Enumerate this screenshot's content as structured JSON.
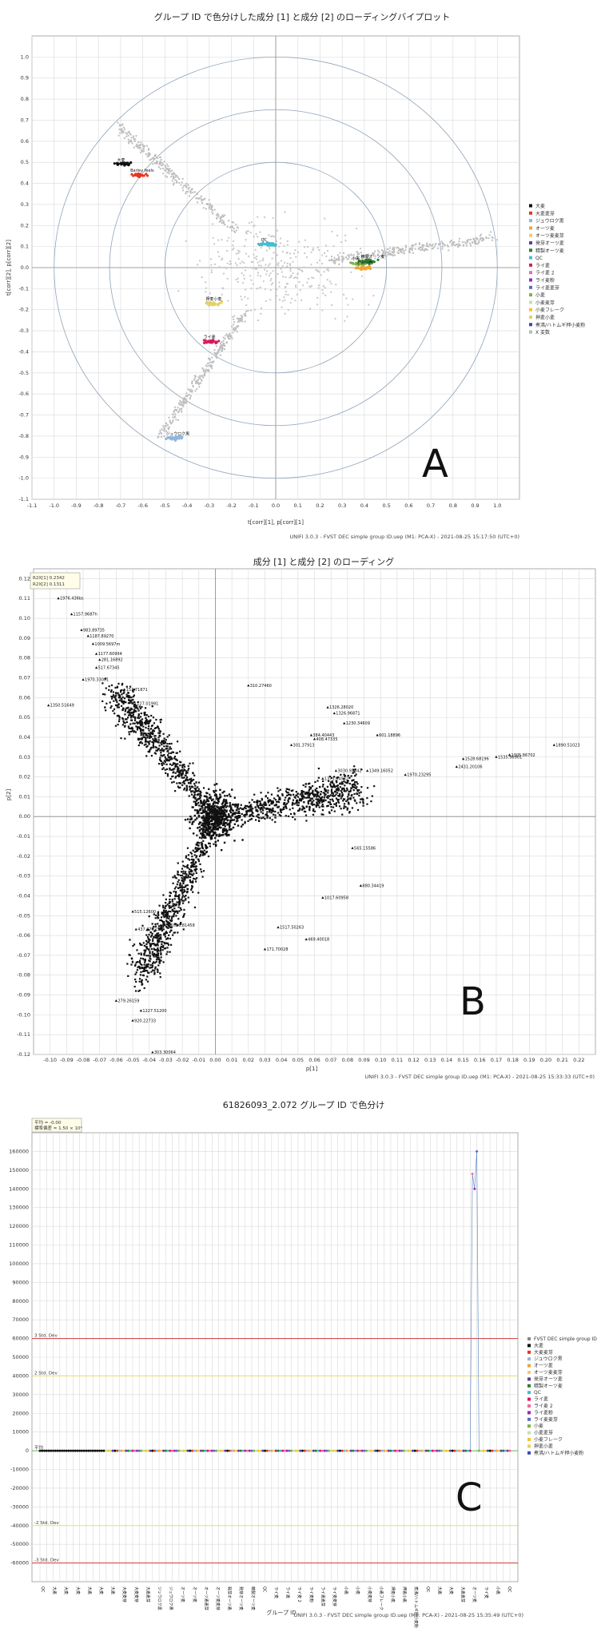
{
  "chart_data": [
    {
      "id": "A",
      "type": "scatter",
      "title": "グループ ID で色分けした成分 [1] と成分 [2] のローディングバイプロット",
      "xlabel": "t[corr][1], p[corr][1]",
      "ylabel": "t[corr][2], p[corr][2]",
      "xlim": [
        -1.1,
        1.1
      ],
      "ylim": [
        -1.1,
        1.1
      ],
      "xticks": [
        -1.1,
        -1.0,
        -0.9,
        -0.8,
        -0.7,
        -0.6,
        -0.5,
        -0.4,
        -0.3,
        -0.2,
        -0.1,
        0.0,
        0.1,
        0.2,
        0.3,
        0.4,
        0.5,
        0.6,
        0.7,
        0.8,
        0.9,
        1.0
      ],
      "yticks": [
        -1.1,
        -1.0,
        -0.9,
        -0.8,
        -0.7,
        -0.6,
        -0.5,
        -0.4,
        -0.3,
        -0.2,
        -0.1,
        0.0,
        0.1,
        0.2,
        0.3,
        0.4,
        0.5,
        0.6,
        0.7,
        0.8,
        0.9,
        1.0
      ],
      "circles": [
        0.5,
        0.75,
        1.0
      ],
      "grid": true,
      "legend_position": "right",
      "footer": "UNIFI 3.0.3 - FVST DEC simple group ID.uep (M1: PCA-X) - 2021-08-25 15:17:50 (UTC+0)",
      "panel_letter": "A",
      "legend": [
        {
          "name": "大麦",
          "color": "#111111"
        },
        {
          "name": "大麦麦芽",
          "color": "#e8351f"
        },
        {
          "name": "ジュウロク黒",
          "color": "#8fb6dc"
        },
        {
          "name": "オーツ麦",
          "color": "#f0a436"
        },
        {
          "name": "オーツ麦麦芽",
          "color": "#f7c873"
        },
        {
          "name": "発芽オーツ麦",
          "color": "#5a3f9c"
        },
        {
          "name": "精製オーツ麦",
          "color": "#2e7d32"
        },
        {
          "name": "QC",
          "color": "#42bcd4"
        },
        {
          "name": "ライ麦",
          "color": "#d81b60"
        },
        {
          "name": "ライ麦 2",
          "color": "#ef6c9e"
        },
        {
          "name": "ライ麦粉",
          "color": "#9c27b0"
        },
        {
          "name": "ライ麦麦芽",
          "color": "#5c6bc0"
        },
        {
          "name": "小麦",
          "color": "#7cb342"
        },
        {
          "name": "小麦麦芽",
          "color": "#c5e1a5"
        },
        {
          "name": "小麦フレーク",
          "color": "#fbc02d"
        },
        {
          "name": "押麦小麦",
          "color": "#e6d060"
        },
        {
          "name": "煮沸/ハトムギ押小麦粉",
          "color": "#3949ab"
        },
        {
          "name": "X 変数",
          "color": "#b9b9b9"
        }
      ],
      "clusters": [
        {
          "name": "大麦",
          "x": -0.68,
          "y": 0.49,
          "label": "大麦"
        },
        {
          "name": "大麦麦芽",
          "x": -0.62,
          "y": 0.44,
          "label": "Barley feels"
        },
        {
          "name": "QC",
          "x": -0.03,
          "y": 0.11,
          "label": "QC"
        },
        {
          "name": "小麦",
          "x": 0.38,
          "y": 0.02,
          "label": "小麦"
        },
        {
          "name": "精製オーツ麦",
          "x": 0.42,
          "y": 0.03,
          "label": "精製オーツ麦"
        },
        {
          "name": "オーツ麦",
          "x": 0.4,
          "y": 0.0,
          "label": "オーツ麦"
        },
        {
          "name": "ライ麦",
          "x": -0.29,
          "y": -0.35,
          "label": "ライ麦"
        },
        {
          "name": "押麦小麦",
          "x": -0.28,
          "y": -0.17,
          "label": "押麦小麦"
        },
        {
          "name": "ジュウロク黒",
          "x": -0.46,
          "y": -0.81,
          "label": "ジュウロク黒"
        }
      ]
    },
    {
      "id": "B",
      "type": "scatter",
      "title": "成分 [1] と成分 [2] のローディング",
      "xlabel": "p[1]",
      "ylabel": "p[2]",
      "xlim": [
        -0.11,
        0.23
      ],
      "ylim": [
        -0.12,
        0.125
      ],
      "xticks": [
        -0.1,
        -0.09,
        -0.08,
        -0.07,
        -0.06,
        -0.05,
        -0.04,
        -0.03,
        -0.02,
        -0.01,
        0.0,
        0.01,
        0.02,
        0.03,
        0.04,
        0.05,
        0.06,
        0.07,
        0.08,
        0.09,
        0.1,
        0.11,
        0.12,
        0.13,
        0.14,
        0.15,
        0.16,
        0.17,
        0.18,
        0.19,
        0.2,
        0.21,
        0.22
      ],
      "yticks": [
        -0.12,
        -0.11,
        -0.1,
        -0.09,
        -0.08,
        -0.07,
        -0.06,
        -0.05,
        -0.04,
        -0.03,
        -0.02,
        -0.01,
        0.0,
        0.01,
        0.02,
        0.03,
        0.04,
        0.05,
        0.06,
        0.07,
        0.08,
        0.09,
        0.1,
        0.11,
        0.12
      ],
      "grid": true,
      "footer": "UNIFI 3.0.3 - FVST DEC simple group ID.uep (M1: PCA-X) - 2021-08-25 15:33:33 (UTC+0)",
      "panel_letter": "B",
      "stats_box": [
        "R2X[1]   0.2342",
        "R2X[2]   0.1311"
      ],
      "labeled_points": [
        {
          "x": -0.095,
          "y": 0.11,
          "label": "1976.436bs"
        },
        {
          "x": -0.087,
          "y": 0.102,
          "label": "1157.9687h"
        },
        {
          "x": -0.081,
          "y": 0.094,
          "label": "983.89735"
        },
        {
          "x": -0.077,
          "y": 0.091,
          "label": "1187.89270"
        },
        {
          "x": -0.074,
          "y": 0.087,
          "label": "1009.5697m"
        },
        {
          "x": -0.072,
          "y": 0.082,
          "label": "1177.60994"
        },
        {
          "x": -0.07,
          "y": 0.079,
          "label": "281.16892"
        },
        {
          "x": -0.072,
          "y": 0.075,
          "label": "517.67345"
        },
        {
          "x": -0.08,
          "y": 0.069,
          "label": "1970.33001"
        },
        {
          "x": -0.101,
          "y": 0.056,
          "label": "1350.51649"
        },
        {
          "x": -0.055,
          "y": 0.064,
          "label": "153.71871"
        },
        {
          "x": -0.05,
          "y": 0.057,
          "label": "1127.01991"
        },
        {
          "x": 0.02,
          "y": 0.066,
          "label": "310.27460"
        },
        {
          "x": 0.068,
          "y": 0.055,
          "label": "1326.28020"
        },
        {
          "x": 0.072,
          "y": 0.052,
          "label": "1326.96871"
        },
        {
          "x": 0.078,
          "y": 0.047,
          "label": "1230.34609"
        },
        {
          "x": 0.058,
          "y": 0.041,
          "label": "384.40443"
        },
        {
          "x": 0.06,
          "y": 0.039,
          "label": "408.47335"
        },
        {
          "x": 0.098,
          "y": 0.041,
          "label": "601.18896"
        },
        {
          "x": 0.046,
          "y": 0.036,
          "label": "301.37913"
        },
        {
          "x": 0.073,
          "y": 0.023,
          "label": "3030.97842"
        },
        {
          "x": 0.065,
          "y": 0.019,
          "label": "1373.64532"
        },
        {
          "x": 0.092,
          "y": 0.023,
          "label": "1349.16052"
        },
        {
          "x": 0.115,
          "y": 0.021,
          "label": "1970.23295"
        },
        {
          "x": 0.15,
          "y": 0.029,
          "label": "1528.68196"
        },
        {
          "x": 0.146,
          "y": 0.025,
          "label": "2431.20106"
        },
        {
          "x": 0.178,
          "y": 0.031,
          "label": "1305.86702"
        },
        {
          "x": 0.205,
          "y": 0.036,
          "label": "1890.51023"
        },
        {
          "x": 0.17,
          "y": 0.03,
          "label": "1535.96901"
        },
        {
          "x": 0.083,
          "y": -0.016,
          "label": "565.15586"
        },
        {
          "x": 0.088,
          "y": -0.035,
          "label": "880.34419"
        },
        {
          "x": 0.065,
          "y": -0.041,
          "label": "1017.60958"
        },
        {
          "x": 0.055,
          "y": -0.062,
          "label": "469.40018"
        },
        {
          "x": 0.038,
          "y": -0.056,
          "label": "1517.50263"
        },
        {
          "x": 0.03,
          "y": -0.067,
          "label": "171.70028"
        },
        {
          "x": -0.028,
          "y": -0.055,
          "label": "1086.81458"
        },
        {
          "x": -0.05,
          "y": -0.048,
          "label": "515.12600"
        },
        {
          "x": -0.048,
          "y": -0.057,
          "label": "437.67023"
        },
        {
          "x": -0.06,
          "y": -0.093,
          "label": "279.26159"
        },
        {
          "x": -0.045,
          "y": -0.098,
          "label": "1227.51200"
        },
        {
          "x": -0.05,
          "y": -0.103,
          "label": "920.22733"
        },
        {
          "x": -0.038,
          "y": -0.119,
          "label": "303.30064"
        }
      ]
    },
    {
      "id": "C",
      "type": "line",
      "title": "61826093_2.072 グループ ID で色分け",
      "xlabel": "グループ ID",
      "ylabel": "",
      "ylim": [
        -70000,
        170000
      ],
      "yticks": [
        -60000,
        -50000,
        -40000,
        -30000,
        -20000,
        -10000,
        0,
        10000,
        20000,
        30000,
        40000,
        50000,
        60000,
        70000,
        80000,
        90000,
        100000,
        110000,
        120000,
        130000,
        140000,
        150000,
        160000
      ],
      "grid": true,
      "footer": "UNIFI 3.0.3 - FVST DEC simple group ID.uep (M1: PCA-X) - 2021-08-25 15:35:49 (UTC+0)",
      "panel_letter": "C",
      "stats_box": [
        "平均 = -0.00",
        "標準偏差 = 1.50 × 10⁴"
      ],
      "reference_lines": [
        {
          "label": "3 Std. Dev",
          "value": 60000,
          "color": "#d23a3a"
        },
        {
          "label": "2 Std. Dev",
          "value": 40000,
          "color": "#e6df6a"
        },
        {
          "label": "平均",
          "value": 0,
          "color": "#5cb85c"
        },
        {
          "label": "-2 Std. Dev",
          "value": -40000,
          "color": "#e6df6a"
        },
        {
          "label": "-3 Std. Dev",
          "value": -60000,
          "color": "#d23a3a"
        }
      ],
      "n_samples": 214,
      "peak": {
        "index_start": 196,
        "index_end": 199,
        "values": [
          0,
          148000,
          140000,
          160000,
          0
        ]
      },
      "legend": [
        {
          "name": "FVST DEC simple group ID",
          "color": "#888888"
        },
        {
          "name": "大麦",
          "color": "#111111"
        },
        {
          "name": "大麦麦芽",
          "color": "#e8351f"
        },
        {
          "name": "ジュウロク黒",
          "color": "#8fb6dc"
        },
        {
          "name": "オーツ麦",
          "color": "#f0a436"
        },
        {
          "name": "オーツ麦麦芽",
          "color": "#f7c873"
        },
        {
          "name": "発芽オーツ麦",
          "color": "#5a3f9c"
        },
        {
          "name": "精製オーツ麦",
          "color": "#2e7d32"
        },
        {
          "name": "QC",
          "color": "#42bcd4"
        },
        {
          "name": "ライ麦",
          "color": "#d81b60"
        },
        {
          "name": "ライ麦 2",
          "color": "#ef6c9e"
        },
        {
          "name": "ライ麦粉",
          "color": "#9c27b0"
        },
        {
          "name": "ライ麦麦芽",
          "color": "#5c6bc0"
        },
        {
          "name": "小麦",
          "color": "#7cb342"
        },
        {
          "name": "小麦麦芽",
          "color": "#c5e1a5"
        },
        {
          "name": "小麦フレーク",
          "color": "#fbc02d"
        },
        {
          "name": "押麦小麦",
          "color": "#e6d060"
        },
        {
          "name": "煮沸/ハトムギ押小麦粉",
          "color": "#3949ab"
        }
      ],
      "categories_sample": [
        "QC",
        "大麦",
        "大麦",
        "大麦",
        "大麦",
        "大麦",
        "大麦",
        "大麦麦芽",
        "大麦麦芽",
        "大麦麦芽",
        "ジュウロク黒",
        "ジュウロク黒",
        "オーツ麦",
        "オーツ麦",
        "オーツ麦麦芽",
        "オーツ麦麦芽",
        "発芽オーツ麦",
        "発芽オーツ麦",
        "精製オーツ麦",
        "QC",
        "ライ麦",
        "ライ麦",
        "ライ麦 2",
        "ライ麦粉",
        "ライ麦麦芽",
        "ライ麦麦芽",
        "小麦",
        "小麦",
        "小麦麦芽",
        "小麦フレーク",
        "押麦小麦",
        "押麦小麦",
        "煮沸/ハトムギ押小麦粉",
        "QC",
        "大麦",
        "大麦",
        "大麦麦芽",
        "オーツ麦",
        "ライ麦",
        "小麦",
        "QC"
      ]
    }
  ]
}
